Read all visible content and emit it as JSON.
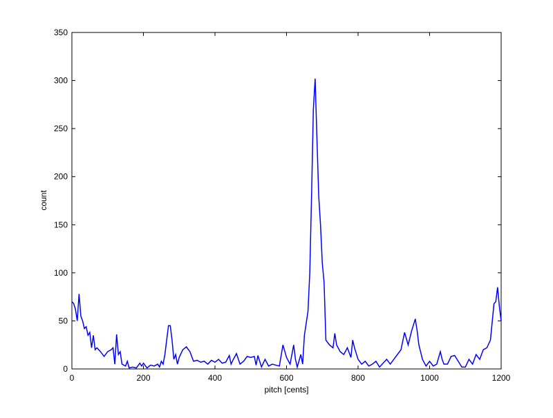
{
  "chart_data": {
    "type": "line",
    "x_label": "pitch [cents]",
    "y_label": "count",
    "x": [
      0,
      5,
      10,
      15,
      20,
      25,
      30,
      35,
      40,
      45,
      50,
      55,
      60,
      65,
      70,
      80,
      90,
      100,
      110,
      115,
      120,
      125,
      130,
      135,
      140,
      150,
      155,
      160,
      170,
      180,
      190,
      195,
      200,
      210,
      220,
      230,
      240,
      245,
      250,
      255,
      260,
      265,
      270,
      275,
      280,
      285,
      290,
      295,
      300,
      310,
      320,
      330,
      340,
      350,
      360,
      370,
      380,
      390,
      400,
      410,
      420,
      430,
      440,
      445,
      450,
      460,
      470,
      480,
      490,
      500,
      510,
      515,
      520,
      530,
      540,
      550,
      560,
      570,
      580,
      590,
      600,
      610,
      620,
      625,
      630,
      640,
      645,
      650,
      660,
      665,
      670,
      675,
      680,
      685,
      690,
      695,
      700,
      705,
      710,
      720,
      730,
      735,
      740,
      750,
      760,
      770,
      780,
      785,
      790,
      800,
      810,
      820,
      830,
      840,
      850,
      860,
      870,
      880,
      890,
      900,
      910,
      920,
      930,
      940,
      950,
      960,
      965,
      970,
      980,
      990,
      1000,
      1010,
      1020,
      1030,
      1035,
      1040,
      1050,
      1060,
      1070,
      1080,
      1090,
      1100,
      1110,
      1120,
      1130,
      1140,
      1150,
      1160,
      1170,
      1180,
      1185,
      1190,
      1195,
      1200
    ],
    "series": [
      {
        "name": "count",
        "color": "#0000ff",
        "values": [
          70,
          68,
          62,
          50,
          78,
          55,
          50,
          42,
          44,
          35,
          38,
          22,
          35,
          20,
          22,
          18,
          13,
          18,
          20,
          22,
          5,
          36,
          15,
          18,
          5,
          3,
          8,
          1,
          2,
          1,
          6,
          3,
          6,
          1,
          4,
          3,
          5,
          2,
          8,
          5,
          15,
          30,
          45,
          45,
          30,
          10,
          15,
          5,
          12,
          20,
          23,
          18,
          8,
          9,
          7,
          8,
          5,
          9,
          7,
          10,
          6,
          7,
          14,
          5,
          9,
          16,
          5,
          8,
          13,
          12,
          13,
          4,
          14,
          2,
          10,
          3,
          5,
          4,
          3,
          25,
          12,
          5,
          25,
          10,
          2,
          15,
          5,
          35,
          60,
          100,
          180,
          270,
          302,
          240,
          180,
          150,
          110,
          90,
          30,
          25,
          22,
          37,
          25,
          18,
          15,
          22,
          12,
          30,
          22,
          10,
          5,
          8,
          3,
          5,
          8,
          2,
          6,
          10,
          5,
          10,
          15,
          20,
          38,
          25,
          40,
          52,
          40,
          25,
          10,
          3,
          8,
          3,
          5,
          18,
          10,
          5,
          5,
          13,
          14,
          8,
          2,
          2,
          10,
          5,
          15,
          10,
          20,
          22,
          30,
          68,
          70,
          85,
          65,
          50
        ]
      }
    ],
    "xlim": [
      0,
      1200
    ],
    "ylim": [
      0,
      350
    ],
    "xticks": [
      0,
      200,
      400,
      600,
      800,
      1000,
      1200
    ],
    "yticks": [
      0,
      50,
      100,
      150,
      200,
      250,
      300,
      350
    ]
  }
}
